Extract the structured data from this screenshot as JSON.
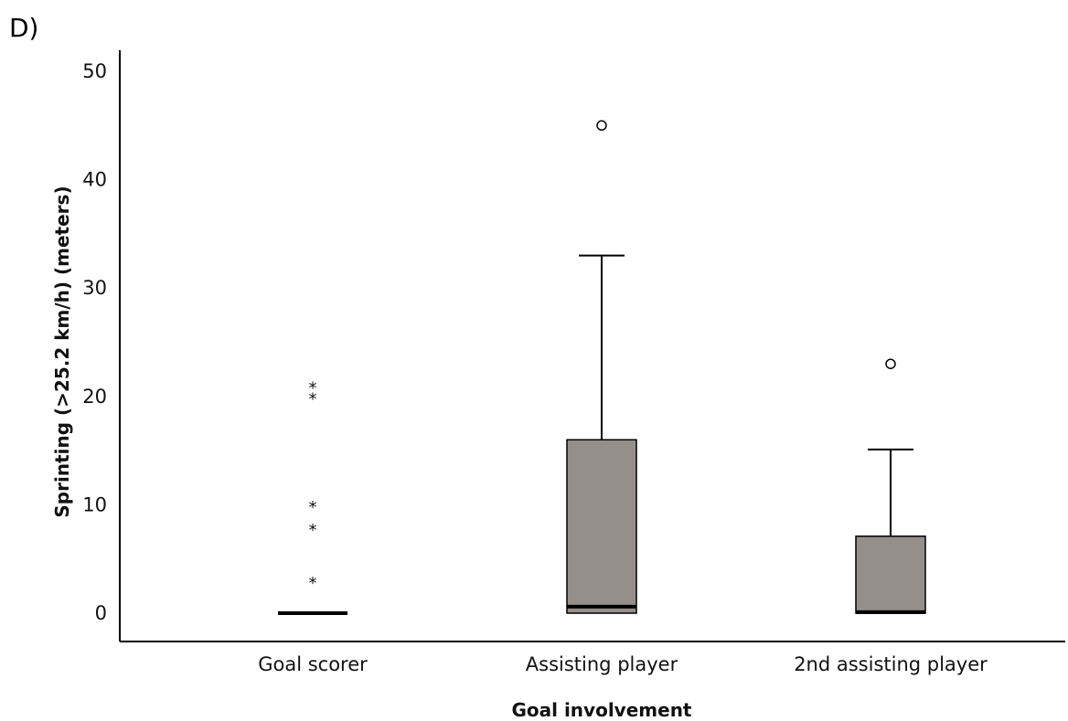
{
  "panel_label": "D)",
  "chart_data": {
    "type": "boxplot",
    "xlabel": "Goal involvement",
    "ylabel": "Sprinting (>25.2 km/h) (meters)",
    "ylim": [
      0,
      50
    ],
    "yticks": [
      0,
      10,
      20,
      30,
      40,
      50
    ],
    "grid": false,
    "box_color": "#958f8c",
    "categories": [
      "Goal scorer",
      "Assisting player",
      "2nd assisting player"
    ],
    "boxes": [
      {
        "category": "Goal scorer",
        "min": 0,
        "q1": 0,
        "median": 0,
        "q3": 0,
        "max": 0,
        "outliers": [],
        "extremes": [
          3.2,
          8.1,
          10.2,
          20.2,
          21.2
        ]
      },
      {
        "category": "Assisting player",
        "min": 0,
        "q1": 0,
        "median": 0.6,
        "q3": 16.0,
        "max": 33.0,
        "outliers": [
          45.0
        ],
        "extremes": []
      },
      {
        "category": "2nd assisting player",
        "min": 0,
        "q1": 0,
        "median": 0.1,
        "q3": 7.1,
        "max": 15.1,
        "outliers": [
          23.0
        ],
        "extremes": []
      }
    ]
  }
}
